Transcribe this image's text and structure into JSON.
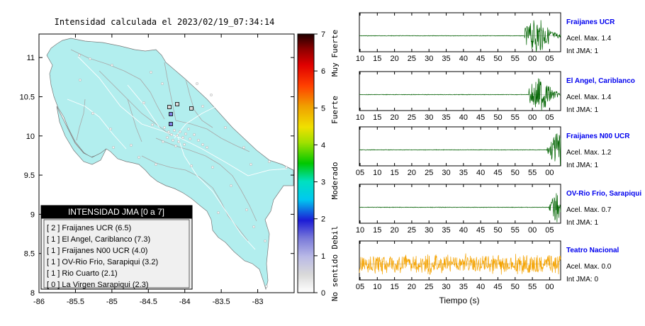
{
  "map": {
    "title": "Intensidad calculada el 2023/02/19_07:34:14",
    "x_ticks": [
      "-86",
      "-85.5",
      "-85",
      "-84.5",
      "-84",
      "-83.5",
      "-83"
    ],
    "y_ticks": [
      "11",
      "10.5",
      "10",
      "9.5",
      "9",
      "8.5",
      "8"
    ],
    "legend": {
      "title": "INTENSIDAD JMA [0 a 7]",
      "items": [
        "[ 2 ]  Fraijanes UCR (6.5)",
        "[ 1 ]  El Angel, Cariblanco (7.3)",
        "[ 1 ]  Fraijanes N00 UCR (4.0)",
        "[ 1 ]  OV-Rio Frio, Sarapiqui (3.2)",
        "[ 1 ]  Rio Cuarto (2.1)",
        "[ 0 ]  La Virgen Sarapiqui (2.3)"
      ]
    }
  },
  "colorbar": {
    "ticks": [
      "7",
      "6",
      "5",
      "4",
      "3",
      "2",
      "1",
      "0"
    ],
    "labels": [
      "Muy Fuerte",
      "Fuerte",
      "Moderado",
      "Debil",
      "No sentido"
    ]
  },
  "waveforms": {
    "xlabel": "Tiempo (s)",
    "panels": [
      {
        "title": "Fraijanes UCR",
        "accel": "Acel. Max. 1.4",
        "jma": "Int JMA: 1",
        "ticks": [
          "10",
          "15",
          "20",
          "25",
          "30",
          "35",
          "40",
          "45",
          "50",
          "55",
          "00",
          "05"
        ],
        "color": "#006400"
      },
      {
        "title": "El Angel, Cariblanco",
        "accel": "Acel. Max. 1.4",
        "jma": "Int JMA: 1",
        "ticks": [
          "10",
          "15",
          "20",
          "25",
          "30",
          "35",
          "40",
          "45",
          "50",
          "55",
          "00",
          "05"
        ],
        "color": "#006400"
      },
      {
        "title": "Fraijanes N00 UCR",
        "accel": "Acel. Max. 1.2",
        "jma": "Int JMA: 1",
        "ticks": [
          "05",
          "10",
          "15",
          "20",
          "25",
          "30",
          "35",
          "40",
          "45",
          "50",
          "55",
          "00"
        ],
        "color": "#006400"
      },
      {
        "title": "OV-Rio Frio, Sarapiqui",
        "accel": "Acel. Max. 0.7",
        "jma": "Int JMA: 1",
        "ticks": [
          "10",
          "15",
          "20",
          "25",
          "30",
          "35",
          "40",
          "45",
          "50",
          "55",
          "00",
          "05"
        ],
        "color": "#006400"
      },
      {
        "title": "Teatro Nacional",
        "accel": "Acel. Max. 0.0",
        "jma": "Int JMA: 0",
        "ticks": [
          "05",
          "10",
          "15",
          "20",
          "25",
          "30",
          "35",
          "40",
          "45",
          "50",
          "55",
          "00"
        ],
        "color": "#f5a300"
      }
    ]
  },
  "chart_data": [
    {
      "type": "scatter",
      "title": "Intensidad calculada el 2023/02/19_07:34:14",
      "xlim": [
        -86,
        -82.5
      ],
      "ylim": [
        8,
        11.3
      ],
      "x_ticks": [
        -86,
        -85.5,
        -85,
        -84.5,
        -84,
        -83.5,
        -83
      ],
      "y_ticks": [
        8,
        8.5,
        9,
        9.5,
        10,
        10.5,
        11
      ],
      "colorbar": {
        "range": [
          0,
          7
        ],
        "labels": [
          "No sentido",
          "Debil",
          "Moderado",
          "Fuerte",
          "Muy Fuerte"
        ]
      },
      "stations": [
        {
          "name": "Fraijanes UCR",
          "jma": 2,
          "distance": 6.5
        },
        {
          "name": "El Angel, Cariblanco",
          "jma": 1,
          "distance": 7.3
        },
        {
          "name": "Fraijanes N00 UCR",
          "jma": 1,
          "distance": 4.0
        },
        {
          "name": "OV-Rio Frio, Sarapiqui",
          "jma": 1,
          "distance": 3.2
        },
        {
          "name": "Rio Cuarto",
          "jma": 1,
          "distance": 2.1
        },
        {
          "name": "La Virgen Sarapiqui",
          "jma": 0,
          "distance": 2.3
        }
      ],
      "legend_position": "bottom-left"
    },
    {
      "type": "line",
      "xlabel": "Tiempo (s)",
      "series": [
        {
          "name": "Fraijanes UCR",
          "acel_max": 1.4,
          "int_jma": 1
        },
        {
          "name": "El Angel, Cariblanco",
          "acel_max": 1.4,
          "int_jma": 1
        },
        {
          "name": "Fraijanes N00 UCR",
          "acel_max": 1.2,
          "int_jma": 1
        },
        {
          "name": "OV-Rio Frio, Sarapiqui",
          "acel_max": 0.7,
          "int_jma": 1
        },
        {
          "name": "Teatro Nacional",
          "acel_max": 0.0,
          "int_jma": 0
        }
      ]
    }
  ]
}
